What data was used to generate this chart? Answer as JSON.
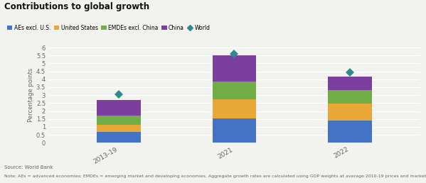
{
  "title": "Contributions to global growth",
  "categories": [
    "2013-19",
    "2021",
    "2022"
  ],
  "series": {
    "AEs excl. U.S.": [
      0.7,
      1.55,
      1.4
    ],
    "United States": [
      0.45,
      1.2,
      1.05
    ],
    "EMDEs excl. China": [
      0.55,
      1.1,
      0.85
    ],
    "China": [
      1.0,
      1.65,
      0.85
    ],
    "World_diamond": [
      3.05,
      5.62,
      4.45
    ]
  },
  "colors": {
    "AEs excl. U.S.": "#4472C4",
    "United States": "#E8A838",
    "EMDEs excl. China": "#70AD47",
    "China": "#7B3F9E",
    "World": "#2E8B8B"
  },
  "ylabel": "Percentage points",
  "ylim": [
    0,
    6
  ],
  "yticks": [
    0,
    0.5,
    1.0,
    1.5,
    2.0,
    2.5,
    3.0,
    3.5,
    4.0,
    4.5,
    5.0,
    5.5,
    6.0
  ],
  "source_text": "Source: World Bank",
  "note_text": "Note: AEs = advanced economies; EMDEs = emerging market and developing economies. Aggregate growth rates are calculated using GDP weights at average 2010-19 prices and market",
  "legend_items": [
    "AEs excl. U.S.",
    "United States",
    "EMDEs excl. China",
    "China",
    "World"
  ],
  "background_color": "#F2F2EE",
  "bar_width": 0.38
}
